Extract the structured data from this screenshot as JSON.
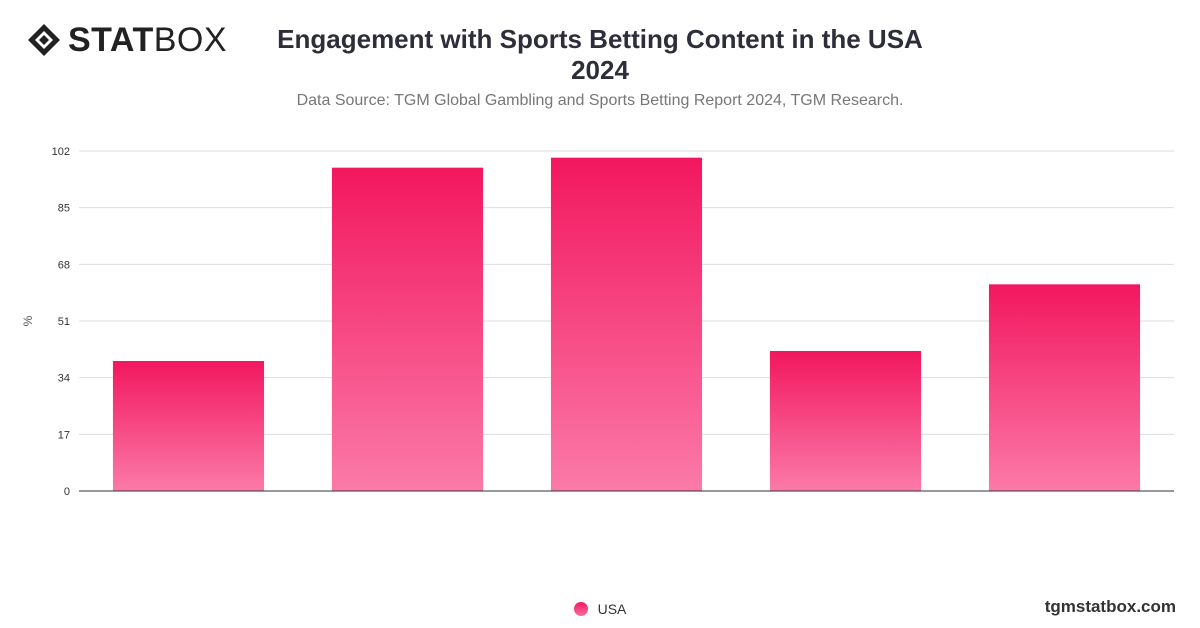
{
  "brand": {
    "logo_bold": "STAT",
    "logo_light": "BOX",
    "watermark": "tgmstatbox.com"
  },
  "colors": {
    "bar_top": "#f2175f",
    "bar_bottom": "#fb7aa8",
    "grid": "#dddddd",
    "axis": "#333333"
  },
  "chart_data": {
    "type": "bar",
    "title_line1": "Engagement with Sports Betting Content in the USA",
    "title_line2": "2024",
    "subtitle": "Data Source: TGM Global Gambling and Sports Betting Report 2024, TGM Research.",
    "ylabel": "%",
    "xlabel": "",
    "ylim": [
      0,
      102
    ],
    "yticks": [
      0,
      17,
      34,
      51,
      68,
      85,
      102
    ],
    "grid": true,
    "legend_position": "bottom-center",
    "categories": [
      "",
      "",
      "",
      "",
      ""
    ],
    "series": [
      {
        "name": "USA",
        "values": [
          39,
          97,
          100,
          42,
          62
        ]
      }
    ]
  }
}
